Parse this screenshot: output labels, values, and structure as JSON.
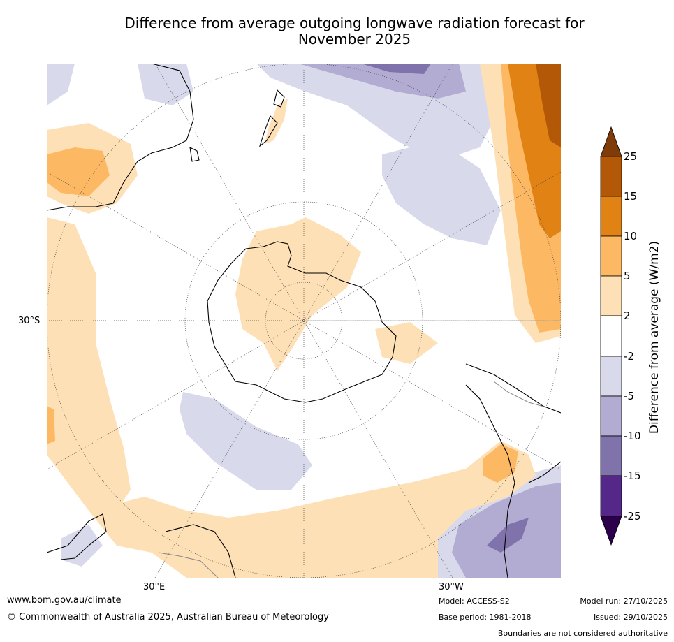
{
  "title": {
    "line1": "Difference from average outgoing longwave radiation forecast for",
    "line2": "November 2025"
  },
  "map": {
    "projection": "south-polar-stereographic",
    "lat_labels": [
      "30°S"
    ],
    "lon_labels": [
      "30°E",
      "30°W"
    ]
  },
  "colorbar": {
    "title": "Difference from average (W/m2)",
    "ticks": [
      "25",
      "15",
      "10",
      "5",
      "2",
      "-2",
      "-5",
      "-10",
      "-15",
      "-25"
    ],
    "colors": [
      "#7f3b08",
      "#b35806",
      "#e08214",
      "#fdb863",
      "#fee0b6",
      "#ffffff",
      "#d8daeb",
      "#b2abd2",
      "#8073ac",
      "#542788",
      "#2d004b"
    ]
  },
  "footer": {
    "website": "www.bom.gov.au/climate",
    "copyright": "© Commonwealth of Australia 2025, Australian Bureau of Meteorology",
    "model": "Model: ACCESS-S2",
    "base_period": "Base period: 1981-2018",
    "model_run": "Model run: 27/10/2025",
    "issued": "Issued: 29/10/2025",
    "disclaimer": "Boundaries are not considered authoritative"
  }
}
